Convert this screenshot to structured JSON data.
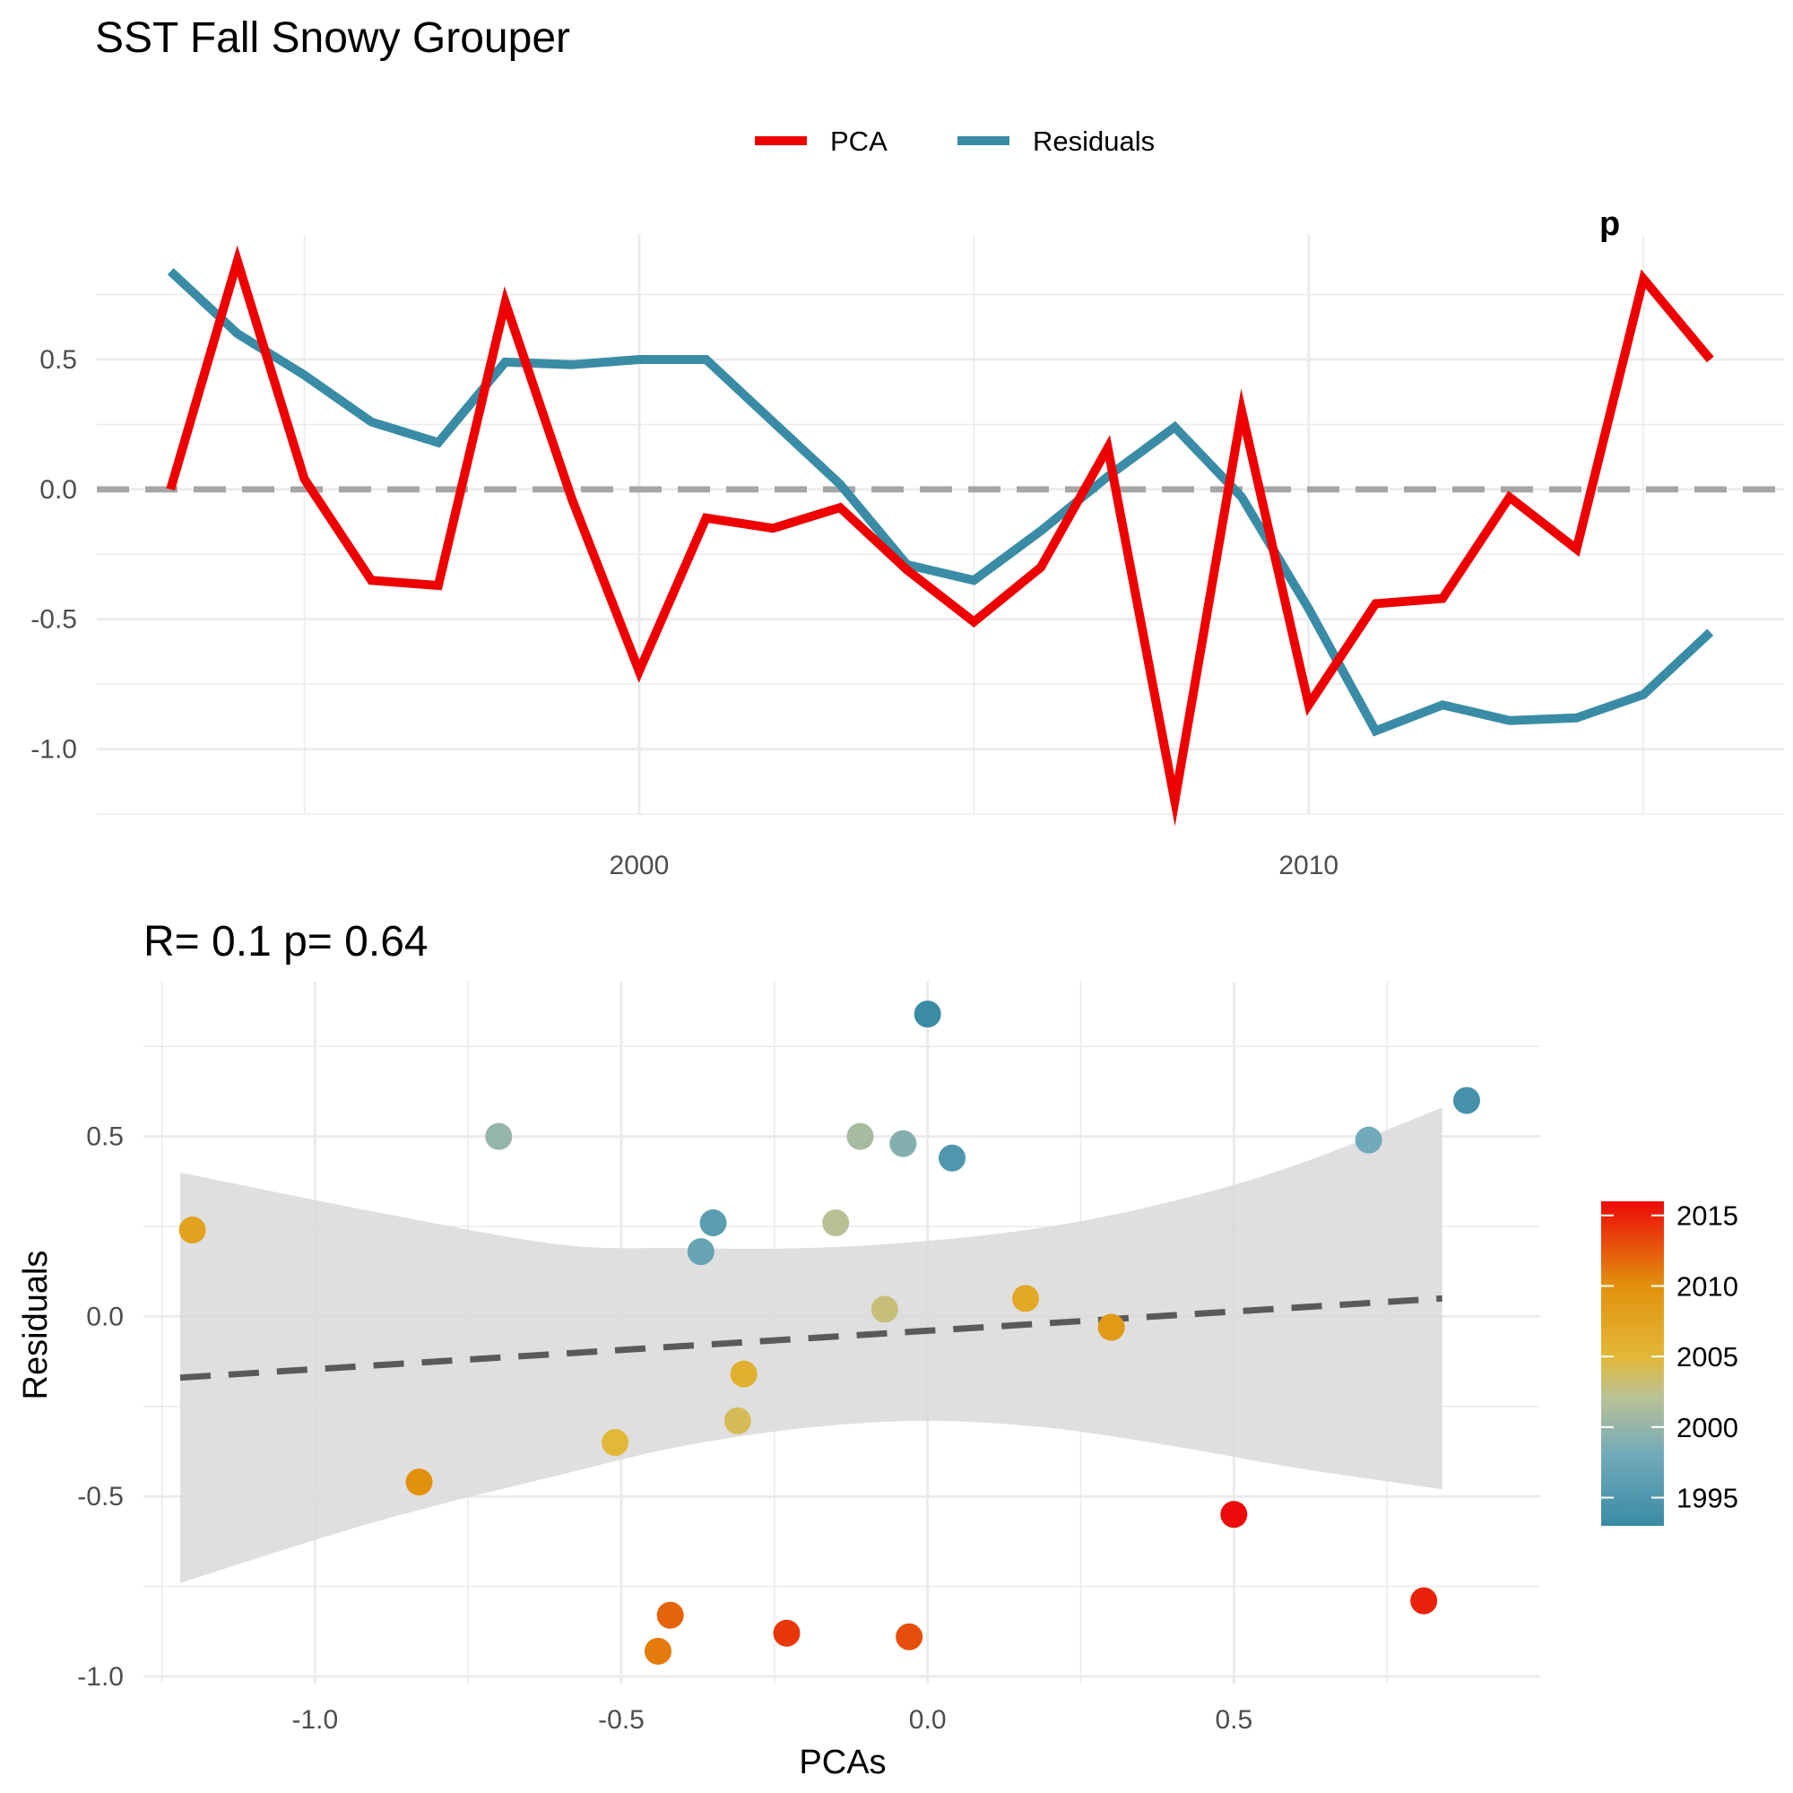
{
  "figure_title": "SST Fall Snowy Grouper",
  "colors": {
    "pca": "#ee0000",
    "residuals": "#3a8ca6",
    "zero_line": "#a6a6a6",
    "fit_line": "#5a5a5a",
    "ribbon": "#d9d9d9",
    "grid": "#ebebeb"
  },
  "chart_data": [
    {
      "type": "line",
      "title": "",
      "xlabel": "",
      "ylabel": "",
      "legend_position": "top",
      "grid": true,
      "xlim": [
        1991.9,
        2017.1
      ],
      "ylim": [
        -1.25,
        0.98
      ],
      "x_ticks": [
        2000,
        2010
      ],
      "x_tick_labels": [
        "2000",
        "2010"
      ],
      "y_ticks": [
        -1.0,
        -0.5,
        0.0,
        0.5
      ],
      "y_tick_labels": [
        "-1.0",
        "-0.5",
        "0.0",
        "0.5"
      ],
      "reference_line": {
        "y": 0,
        "style": "dashed"
      },
      "corner_annotation": "p",
      "x": [
        1993,
        1994,
        1995,
        1996,
        1997,
        1998,
        1999,
        2000,
        2001,
        2002,
        2003,
        2004,
        2005,
        2006,
        2007,
        2008,
        2009,
        2010,
        2011,
        2012,
        2013,
        2014,
        2015,
        2016
      ],
      "series": [
        {
          "name": "PCA",
          "values": [
            0.0,
            0.88,
            0.04,
            -0.35,
            -0.37,
            0.72,
            -0.04,
            -0.7,
            -0.11,
            -0.15,
            -0.07,
            -0.31,
            -0.51,
            -0.3,
            0.16,
            -1.2,
            0.3,
            -0.83,
            -0.44,
            -0.42,
            -0.03,
            -0.23,
            0.81,
            0.5
          ]
        },
        {
          "name": "Residuals",
          "values": [
            0.84,
            0.6,
            0.44,
            0.26,
            0.18,
            0.49,
            0.48,
            0.5,
            0.5,
            0.26,
            0.02,
            -0.29,
            -0.35,
            -0.16,
            0.05,
            0.24,
            -0.03,
            -0.46,
            -0.93,
            -0.83,
            -0.89,
            -0.88,
            -0.79,
            -0.55
          ]
        }
      ]
    },
    {
      "type": "scatter",
      "title": "R= 0.1  p= 0.64",
      "xlabel": "PCAs",
      "ylabel": "Residuals",
      "grid": true,
      "xlim": [
        -1.28,
        1.0
      ],
      "ylim": [
        -1.02,
        0.93
      ],
      "x_ticks": [
        -1.0,
        -0.5,
        0.0,
        0.5
      ],
      "x_tick_labels": [
        "-1.0",
        "-0.5",
        "0.0",
        "0.5"
      ],
      "y_ticks": [
        -1.0,
        -0.5,
        0.0,
        0.5
      ],
      "y_tick_labels": [
        "-1.0",
        "-0.5",
        "0.0",
        "0.5"
      ],
      "fit_line": {
        "style": "dashed",
        "x": [
          -1.22,
          0.84
        ],
        "y": [
          -0.17,
          0.05
        ]
      },
      "confidence_band": {
        "x": [
          -1.22,
          -0.9,
          -0.6,
          -0.4,
          -0.2,
          0.0,
          0.2,
          0.4,
          0.6,
          0.84
        ],
        "lower": [
          -0.74,
          -0.57,
          -0.44,
          -0.36,
          -0.31,
          -0.29,
          -0.31,
          -0.36,
          -0.42,
          -0.48
        ],
        "upper": [
          0.4,
          0.29,
          0.2,
          0.19,
          0.19,
          0.21,
          0.25,
          0.32,
          0.42,
          0.58
        ]
      },
      "color_scale": {
        "title": "",
        "min_year": 1993,
        "max_year": 2016,
        "ticks": [
          2015,
          2010,
          2005,
          2000,
          1995
        ],
        "tick_labels": [
          "2015",
          "2010",
          "2005",
          "2000",
          "1995"
        ]
      },
      "points": [
        {
          "year": 1993,
          "x": 0.0,
          "y": 0.84
        },
        {
          "year": 1994,
          "x": 0.88,
          "y": 0.6
        },
        {
          "year": 1995,
          "x": 0.04,
          "y": 0.44
        },
        {
          "year": 1996,
          "x": -0.35,
          "y": 0.26
        },
        {
          "year": 1997,
          "x": -0.37,
          "y": 0.18
        },
        {
          "year": 1998,
          "x": 0.72,
          "y": 0.49
        },
        {
          "year": 1999,
          "x": -0.04,
          "y": 0.48
        },
        {
          "year": 2000,
          "x": -0.7,
          "y": 0.5
        },
        {
          "year": 2001,
          "x": -0.11,
          "y": 0.5
        },
        {
          "year": 2002,
          "x": -0.15,
          "y": 0.26
        },
        {
          "year": 2003,
          "x": -0.07,
          "y": 0.02
        },
        {
          "year": 2004,
          "x": -0.31,
          "y": -0.29
        },
        {
          "year": 2005,
          "x": -0.51,
          "y": -0.35
        },
        {
          "year": 2006,
          "x": -0.3,
          "y": -0.16
        },
        {
          "year": 2007,
          "x": 0.16,
          "y": 0.05
        },
        {
          "year": 2008,
          "x": -1.2,
          "y": 0.24
        },
        {
          "year": 2009,
          "x": 0.3,
          "y": -0.03
        },
        {
          "year": 2010,
          "x": -0.83,
          "y": -0.46
        },
        {
          "year": 2011,
          "x": -0.44,
          "y": -0.93
        },
        {
          "year": 2012,
          "x": -0.42,
          "y": -0.83
        },
        {
          "year": 2013,
          "x": -0.03,
          "y": -0.89
        },
        {
          "year": 2014,
          "x": -0.23,
          "y": -0.88
        },
        {
          "year": 2015,
          "x": 0.81,
          "y": -0.79
        },
        {
          "year": 2016,
          "x": 0.5,
          "y": -0.55
        }
      ]
    }
  ]
}
